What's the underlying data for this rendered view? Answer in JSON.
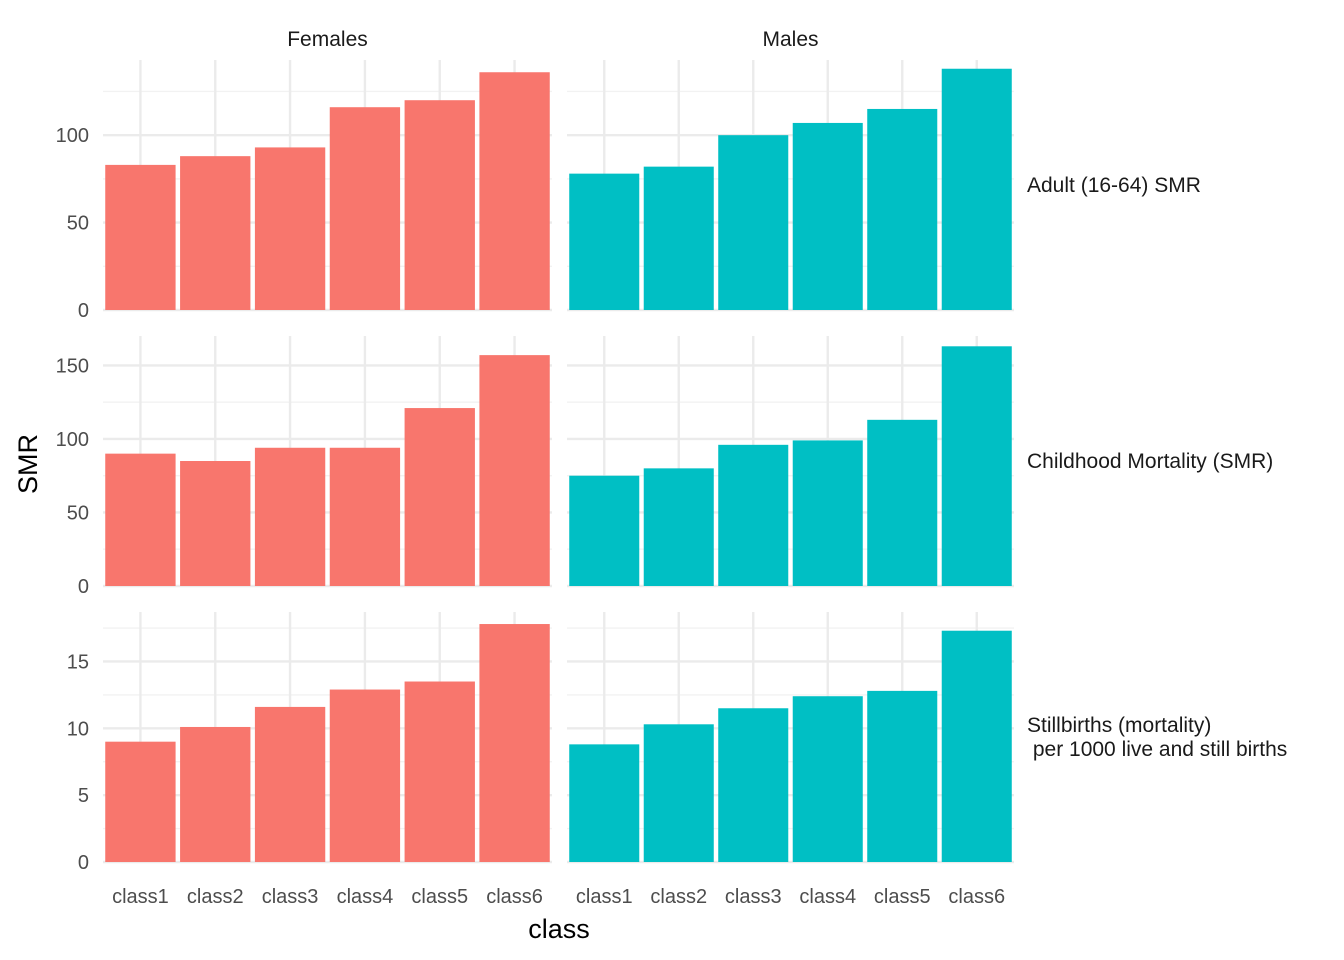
{
  "chart_data": {
    "type": "bar",
    "xlabel": "class",
    "ylabel": "SMR",
    "categories": [
      "class1",
      "class2",
      "class3",
      "class4",
      "class5",
      "class6"
    ],
    "columns": [
      "Females",
      "Males"
    ],
    "colors": {
      "Females": "#F8766D",
      "Males": "#00BFC4"
    },
    "grid": true,
    "rows": [
      {
        "label_lines": [
          "Adult (16-64) SMR"
        ],
        "ylim": [
          0,
          143
        ],
        "yticks": [
          0,
          50,
          100
        ],
        "values": {
          "Females": [
            83,
            88,
            93,
            116,
            120,
            136
          ],
          "Males": [
            78,
            82,
            100,
            107,
            115,
            138
          ]
        }
      },
      {
        "label_lines": [
          "Childhood Mortality (SMR)"
        ],
        "ylim": [
          0,
          170
        ],
        "yticks": [
          0,
          50,
          100,
          150
        ],
        "values": {
          "Females": [
            90,
            85,
            94,
            94,
            121,
            157
          ],
          "Males": [
            75,
            80,
            96,
            99,
            113,
            163
          ]
        }
      },
      {
        "label_lines": [
          "Stillbirths (mortality)",
          " per 1000 live and still births"
        ],
        "ylim": [
          0,
          18.7
        ],
        "yticks": [
          0,
          5,
          10,
          15
        ],
        "values": {
          "Females": [
            9.0,
            10.1,
            11.6,
            12.9,
            13.5,
            17.8
          ],
          "Males": [
            8.8,
            10.3,
            11.5,
            12.4,
            12.8,
            17.3
          ]
        }
      }
    ]
  }
}
